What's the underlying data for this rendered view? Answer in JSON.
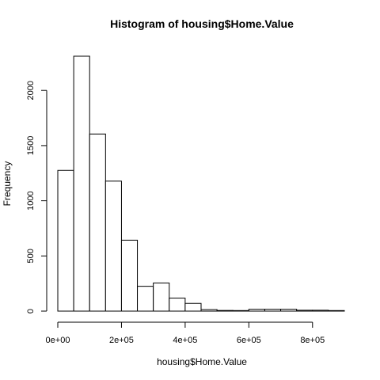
{
  "chart_data": {
    "type": "bar",
    "title": "Histogram of housing$Home.Value",
    "xlabel": "housing$Home.Value",
    "ylabel": "Frequency",
    "bin_width": 50000,
    "bins": [
      {
        "start": 0,
        "end": 50000,
        "count": 1275
      },
      {
        "start": 50000,
        "end": 100000,
        "count": 2310
      },
      {
        "start": 100000,
        "end": 150000,
        "count": 1605
      },
      {
        "start": 150000,
        "end": 200000,
        "count": 1178
      },
      {
        "start": 200000,
        "end": 250000,
        "count": 643
      },
      {
        "start": 250000,
        "end": 300000,
        "count": 225
      },
      {
        "start": 300000,
        "end": 350000,
        "count": 255
      },
      {
        "start": 350000,
        "end": 400000,
        "count": 118
      },
      {
        "start": 400000,
        "end": 450000,
        "count": 70
      },
      {
        "start": 450000,
        "end": 500000,
        "count": 14
      },
      {
        "start": 500000,
        "end": 550000,
        "count": 6
      },
      {
        "start": 550000,
        "end": 600000,
        "count": 5
      },
      {
        "start": 600000,
        "end": 650000,
        "count": 17
      },
      {
        "start": 650000,
        "end": 700000,
        "count": 17
      },
      {
        "start": 700000,
        "end": 750000,
        "count": 17
      },
      {
        "start": 750000,
        "end": 800000,
        "count": 8
      },
      {
        "start": 800000,
        "end": 850000,
        "count": 8
      },
      {
        "start": 850000,
        "end": 900000,
        "count": 5
      }
    ],
    "xlim": [
      0,
      900000
    ],
    "ylim": [
      0,
      2310
    ],
    "x_ticks": [
      0,
      200000,
      400000,
      600000,
      800000
    ],
    "x_tick_labels": [
      "0e+00",
      "2e+05",
      "4e+05",
      "6e+05",
      "8e+05"
    ],
    "y_ticks": [
      0,
      500,
      1000,
      1500,
      2000
    ],
    "y_tick_labels": [
      "0",
      "500",
      "1000",
      "1500",
      "2000"
    ],
    "grid": false
  }
}
